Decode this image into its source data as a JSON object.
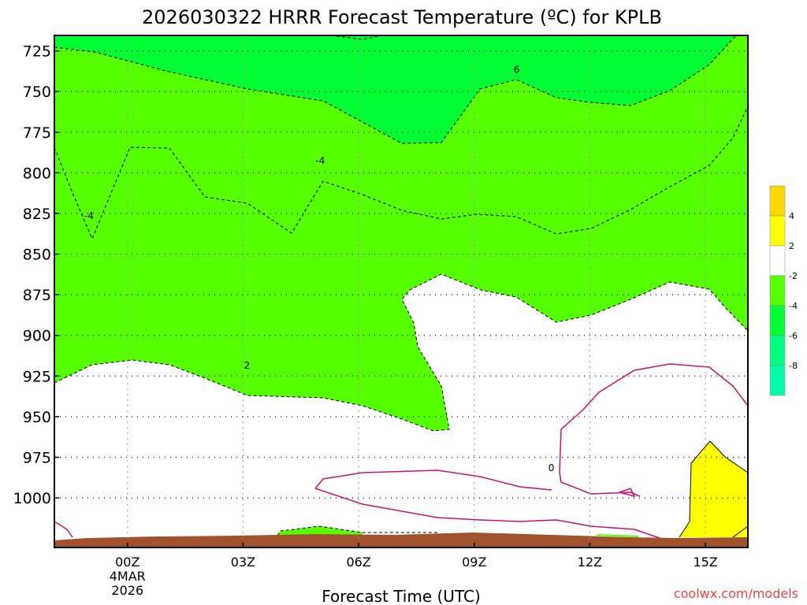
{
  "chart_data": {
    "type": "contour",
    "title": "2026030322 HRRR Forecast Temperature (ºC) for KPLB",
    "xlabel": "Forecast Time (UTC)",
    "ylabel": "",
    "x_range_hours": [
      -2,
      16
    ],
    "y_range_hpa": [
      715,
      1030
    ],
    "y_ticks": [
      {
        "value": 725,
        "label": "725"
      },
      {
        "value": 750,
        "label": "750"
      },
      {
        "value": 775,
        "label": "775"
      },
      {
        "value": 800,
        "label": "800"
      },
      {
        "value": 825,
        "label": "825"
      },
      {
        "value": 850,
        "label": "850"
      },
      {
        "value": 875,
        "label": "875"
      },
      {
        "value": 900,
        "label": "900"
      },
      {
        "value": 925,
        "label": "925"
      },
      {
        "value": 950,
        "label": "950"
      },
      {
        "value": 975,
        "label": "975"
      },
      {
        "value": 1000,
        "label": "1000"
      }
    ],
    "x_ticks": [
      {
        "value": 0,
        "label": "00Z",
        "sub1": "4MAR",
        "sub2": "2026"
      },
      {
        "value": 3,
        "label": "03Z"
      },
      {
        "value": 6,
        "label": "06Z"
      },
      {
        "value": 9,
        "label": "09Z"
      },
      {
        "value": 12,
        "label": "12Z"
      },
      {
        "value": 15,
        "label": "15Z"
      }
    ],
    "grid": true,
    "contour_labels": [
      {
        "text": "-4",
        "x": -1.0,
        "y": 828
      },
      {
        "text": "-4",
        "x": 5.0,
        "y": 794
      },
      {
        "text": "6",
        "x": 10.1,
        "y": 738
      },
      {
        "text": "2",
        "x": 3.1,
        "y": 920
      },
      {
        "text": "0",
        "x": 11.0,
        "y": 983
      }
    ],
    "colorbar": {
      "position": "right",
      "bins": [
        {
          "color": "#ffd700",
          "label": "4"
        },
        {
          "color": "#ffff00",
          "label": "2"
        },
        {
          "color": "#ffffff",
          "label": "-2"
        },
        {
          "color": "#55ff00",
          "label": "-4"
        },
        {
          "color": "#00ff33",
          "label": "-6"
        },
        {
          "color": "#00ff80",
          "label": "-8"
        },
        {
          "color": "#00ffaa",
          "label": ""
        }
      ]
    },
    "colors": {
      "cold": "#00ff88",
      "mid": "#00ff33",
      "cool": "#55ff00",
      "neutral": "#ffffff",
      "warm": "#ffff00",
      "ground": "#a0522d",
      "zero_line": "#c8106e"
    }
  },
  "credit": "coolwx.com/models"
}
